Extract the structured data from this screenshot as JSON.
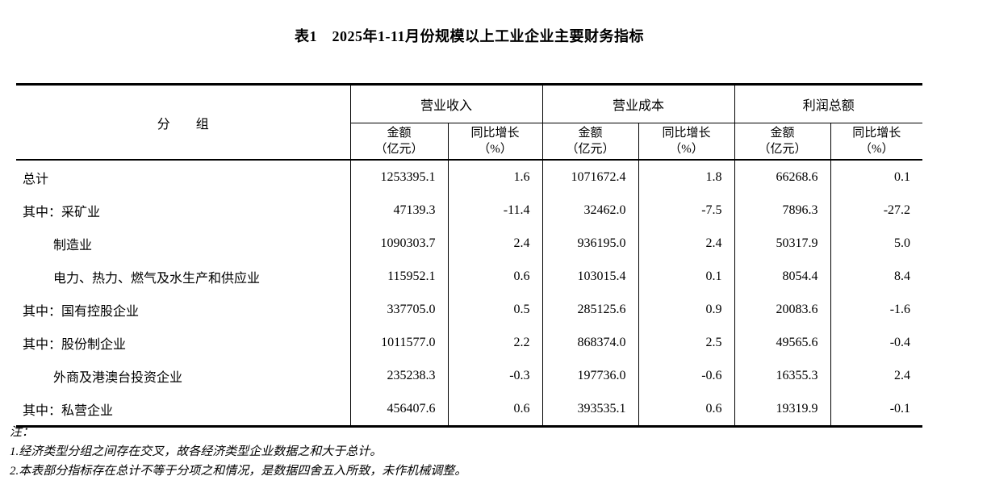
{
  "page": {
    "background": "#ffffff",
    "text_color": "#000000",
    "border_color": "#000000"
  },
  "title": "表1　2025年1-11月份规模以上工业企业主要财务指标",
  "table": {
    "group_column_header": "分　　组",
    "sections": [
      {
        "label": "营业收入",
        "sub": [
          "金额\n（亿元）",
          "同比增长\n（%）"
        ]
      },
      {
        "label": "营业成本",
        "sub": [
          "金额\n（亿元）",
          "同比增长\n（%）"
        ]
      },
      {
        "label": "利润总额",
        "sub": [
          "金额\n（亿元）",
          "同比增长\n（%）"
        ]
      }
    ],
    "rows": [
      {
        "label": "总计",
        "indent": false,
        "values": [
          "1253395.1",
          "1.6",
          "1071672.4",
          "1.8",
          "66268.6",
          "0.1"
        ]
      },
      {
        "label": "其中：采矿业",
        "indent": false,
        "values": [
          "47139.3",
          "-11.4",
          "32462.0",
          "-7.5",
          "7896.3",
          "-27.2"
        ]
      },
      {
        "label": "制造业",
        "indent": true,
        "values": [
          "1090303.7",
          "2.4",
          "936195.0",
          "2.4",
          "50317.9",
          "5.0"
        ]
      },
      {
        "label": "电力、热力、燃气及水生产和供应业",
        "indent": true,
        "values": [
          "115952.1",
          "0.6",
          "103015.4",
          "0.1",
          "8054.4",
          "8.4"
        ]
      },
      {
        "label": "其中：国有控股企业",
        "indent": false,
        "values": [
          "337705.0",
          "0.5",
          "285125.6",
          "0.9",
          "20083.6",
          "-1.6"
        ]
      },
      {
        "label": "其中：股份制企业",
        "indent": false,
        "values": [
          "1011577.0",
          "2.2",
          "868374.0",
          "2.5",
          "49565.6",
          "-0.4"
        ]
      },
      {
        "label": "外商及港澳台投资企业",
        "indent": true,
        "values": [
          "235238.3",
          "-0.3",
          "197736.0",
          "-0.6",
          "16355.3",
          "2.4"
        ]
      },
      {
        "label": "其中：私营企业",
        "indent": false,
        "values": [
          "456407.6",
          "0.6",
          "393535.1",
          "0.6",
          "19319.9",
          "-0.1"
        ]
      }
    ]
  },
  "notes": {
    "label": "注：",
    "items": [
      "1.经济类型分组之间存在交叉，故各经济类型企业数据之和大于总计。",
      "2.本表部分指标存在总计不等于分项之和情况，是数据四舍五入所致，未作机械调整。"
    ]
  }
}
